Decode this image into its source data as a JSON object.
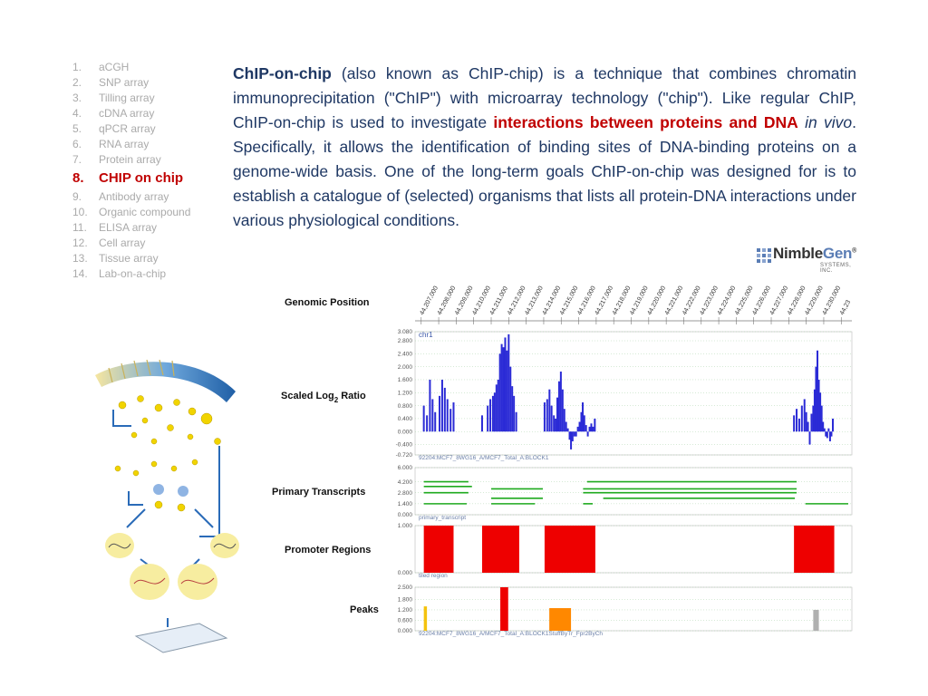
{
  "sidebar": {
    "items": [
      {
        "num": "1.",
        "label": "aCGH"
      },
      {
        "num": "2.",
        "label": "SNP array"
      },
      {
        "num": "3.",
        "label": "Tilling array"
      },
      {
        "num": "4.",
        "label": "cDNA array"
      },
      {
        "num": "5.",
        "label": "qPCR array"
      },
      {
        "num": "6.",
        "label": "RNA array"
      },
      {
        "num": "7.",
        "label": "Protein array"
      },
      {
        "num": "8.",
        "label": "CHIP on chip",
        "active": true
      },
      {
        "num": "9.",
        "label": "Antibody array"
      },
      {
        "num": "10.",
        "label": "Organic compound"
      },
      {
        "num": "11.",
        "label": "ELISA array"
      },
      {
        "num": "12.",
        "label": "Cell array"
      },
      {
        "num": "13.",
        "label": "Tissue array"
      },
      {
        "num": "14.",
        "label": "Lab-on-a-chip"
      }
    ]
  },
  "content": {
    "term": "ChIP-on-chip",
    "p1": " (also known as ChIP-chip) is a technique that combines chromatin immunoprecipitation (\"ChIP\") with microarray technology (\"chip\"). Like regular ChIP, ChIP-on-chip is used to investigate ",
    "highlight": "interactions between proteins and DNA",
    "p2": " ",
    "italic": "in vivo",
    "p3": ". Specifically, it allows the identification of binding sites of DNA-binding proteins on a genome-wide basis. One of the long-term goals ChIP-on-chip was designed for is to establish a catalogue of (selected) organisms that lists all protein-DNA interactions under various physiological conditions."
  },
  "logo": {
    "word_a": "Nimble",
    "word_b": "Gen",
    "registered": "®",
    "sub": "SYSTEMS, INC."
  },
  "colors": {
    "accent_red": "#c00000",
    "body_text": "#1f3864",
    "sidebar_text": "#aaaaaa",
    "ratio_bar": "#2b2bd6",
    "transcript_line": "#1eaa1e",
    "promoter_block": "#ee0000",
    "peak_yellow": "#f4c20d",
    "peak_red": "#ee0000",
    "peak_orange": "#ff8800",
    "peak_gray": "#b0b0b0",
    "grid_line": "#99cc99"
  },
  "chart_data": {
    "type": "genome-browser",
    "x_label": "Genomic Position",
    "positions": [
      "44,207,000",
      "44,208,000",
      "44,209,000",
      "44,210,000",
      "44,211,000",
      "44,212,000",
      "44,213,000",
      "44,214,000",
      "44,215,000",
      "44,216,000",
      "44,217,000",
      "44,218,000",
      "44,219,000",
      "44,220,000",
      "44,221,000",
      "44,222,000",
      "44,223,000",
      "44,224,000",
      "44,225,000",
      "44,226,000",
      "44,227,000",
      "44,228,000",
      "44,229,000",
      "44,230,000",
      "44,23"
    ],
    "xlim": [
      44206650,
      44231400
    ],
    "tracks": [
      {
        "name": "ratio",
        "title_parts": [
          "Scaled Log",
          "2",
          " Ratio"
        ],
        "label": "chr1",
        "note": "92204:MCF7_8WG16_A/MCF7_Total_A:BLOCK1",
        "ticks": [
          "3.080",
          "2.800",
          "2.400",
          "2.000",
          "1.600",
          "1.200",
          "0.800",
          "0.400",
          "0.000",
          "-0.400",
          "-0.720"
        ],
        "ylim": [
          -0.72,
          3.08
        ],
        "bars": [
          [
            44207150,
            0.8
          ],
          [
            44207330,
            0.5
          ],
          [
            44207500,
            1.6
          ],
          [
            44207650,
            1.0
          ],
          [
            44207800,
            0.6
          ],
          [
            44208050,
            1.1
          ],
          [
            44208200,
            1.6
          ],
          [
            44208350,
            1.35
          ],
          [
            44208500,
            1.0
          ],
          [
            44208680,
            0.7
          ],
          [
            44208850,
            0.9
          ],
          [
            44210480,
            0.5
          ],
          [
            44210800,
            0.8
          ],
          [
            44210950,
            1.0
          ],
          [
            44211100,
            1.1
          ],
          [
            44211200,
            1.2
          ],
          [
            44211300,
            1.45
          ],
          [
            44211400,
            1.6
          ],
          [
            44211500,
            2.4
          ],
          [
            44211600,
            2.7
          ],
          [
            44211700,
            2.6
          ],
          [
            44211800,
            2.9
          ],
          [
            44211900,
            2.5
          ],
          [
            44212000,
            3.0
          ],
          [
            44212100,
            2.0
          ],
          [
            44212200,
            1.4
          ],
          [
            44212300,
            1.1
          ],
          [
            44212430,
            0.6
          ],
          [
            44214050,
            0.9
          ],
          [
            44214200,
            1.0
          ],
          [
            44214330,
            1.3
          ],
          [
            44214450,
            0.8
          ],
          [
            44214580,
            0.5
          ],
          [
            44214680,
            0.4
          ],
          [
            44214780,
            1.05
          ],
          [
            44214880,
            1.55
          ],
          [
            44214980,
            1.85
          ],
          [
            44215080,
            1.3
          ],
          [
            44215180,
            0.7
          ],
          [
            44215280,
            0.3
          ],
          [
            44215380,
            0.1
          ],
          [
            44215480,
            -0.25
          ],
          [
            44215560,
            -0.55
          ],
          [
            44215650,
            -0.3
          ],
          [
            44215750,
            -0.15
          ],
          [
            44215850,
            -0.15
          ],
          [
            44215950,
            0.15
          ],
          [
            44216050,
            0.3
          ],
          [
            44216150,
            0.6
          ],
          [
            44216230,
            0.9
          ],
          [
            44216320,
            0.5
          ],
          [
            44216420,
            0.2
          ],
          [
            44216520,
            -0.15
          ],
          [
            44216620,
            0.15
          ],
          [
            44216720,
            0.25
          ],
          [
            44216820,
            0.15
          ],
          [
            44216920,
            0.4
          ],
          [
            44228300,
            0.5
          ],
          [
            44228450,
            0.7
          ],
          [
            44228600,
            0.4
          ],
          [
            44228750,
            0.8
          ],
          [
            44228900,
            1.0
          ],
          [
            44229000,
            0.6
          ],
          [
            44229100,
            0.3
          ],
          [
            44229200,
            -0.4
          ],
          [
            44229300,
            0.55
          ],
          [
            44229400,
            0.8
          ],
          [
            44229480,
            1.3
          ],
          [
            44229560,
            2.0
          ],
          [
            44229640,
            2.5
          ],
          [
            44229720,
            1.6
          ],
          [
            44229800,
            1.2
          ],
          [
            44229880,
            0.8
          ],
          [
            44229960,
            0.3
          ],
          [
            44230040,
            0.1
          ],
          [
            44230120,
            -0.15
          ],
          [
            44230200,
            -0.2
          ],
          [
            44230280,
            0.1
          ],
          [
            44230360,
            -0.3
          ],
          [
            44230440,
            -0.15
          ],
          [
            44230520,
            0.4
          ]
        ]
      },
      {
        "name": "transcripts",
        "title": "Primary Transcripts",
        "note": "primary_transcript",
        "ticks": [
          "6.000",
          "4.200",
          "2.800",
          "1.400",
          "0.000"
        ],
        "ylim": [
          0,
          6
        ],
        "segments": [
          [
            44207150,
            44209700,
            4.2
          ],
          [
            44207150,
            44209900,
            3.6
          ],
          [
            44207150,
            44209700,
            2.8
          ],
          [
            44207150,
            44209600,
            1.4
          ],
          [
            44211000,
            44213950,
            3.3
          ],
          [
            44211000,
            44213950,
            2.1
          ],
          [
            44211000,
            44213500,
            1.4
          ],
          [
            44216480,
            44228450,
            4.2
          ],
          [
            44216250,
            44228450,
            3.3
          ],
          [
            44216250,
            44228450,
            2.8
          ],
          [
            44216250,
            44216800,
            1.4
          ],
          [
            44217400,
            44228350,
            2.1
          ],
          [
            44228950,
            44231400,
            1.4
          ]
        ]
      },
      {
        "name": "promoters",
        "title": "Promoter Regions",
        "note": "tiled region",
        "ticks": [
          "1.000",
          "0.000"
        ],
        "ylim": [
          0,
          1
        ],
        "blocks": [
          [
            44207150,
            44208850
          ],
          [
            44210480,
            44212600
          ],
          [
            44214050,
            44216950
          ],
          [
            44228300,
            44230600
          ]
        ]
      },
      {
        "name": "peaks",
        "title": "Peaks",
        "note": "92204:MCF7_8WG16_A/MCF7_Total_A:BLOCK1StuffByTr_Fpr2ByCh",
        "ticks": [
          "2.500",
          "1.800",
          "1.200",
          "0.600",
          "0.000"
        ],
        "ylim": [
          0,
          2.5
        ],
        "bars": [
          {
            "x1": 44207150,
            "x2": 44207330,
            "y": 1.4,
            "color": "yellow"
          },
          {
            "x1": 44211520,
            "x2": 44211970,
            "y": 2.5,
            "color": "red"
          },
          {
            "x1": 44214320,
            "x2": 44215560,
            "y": 1.3,
            "color": "orange"
          },
          {
            "x1": 44229400,
            "x2": 44229720,
            "y": 1.2,
            "color": "gray"
          }
        ]
      }
    ]
  }
}
